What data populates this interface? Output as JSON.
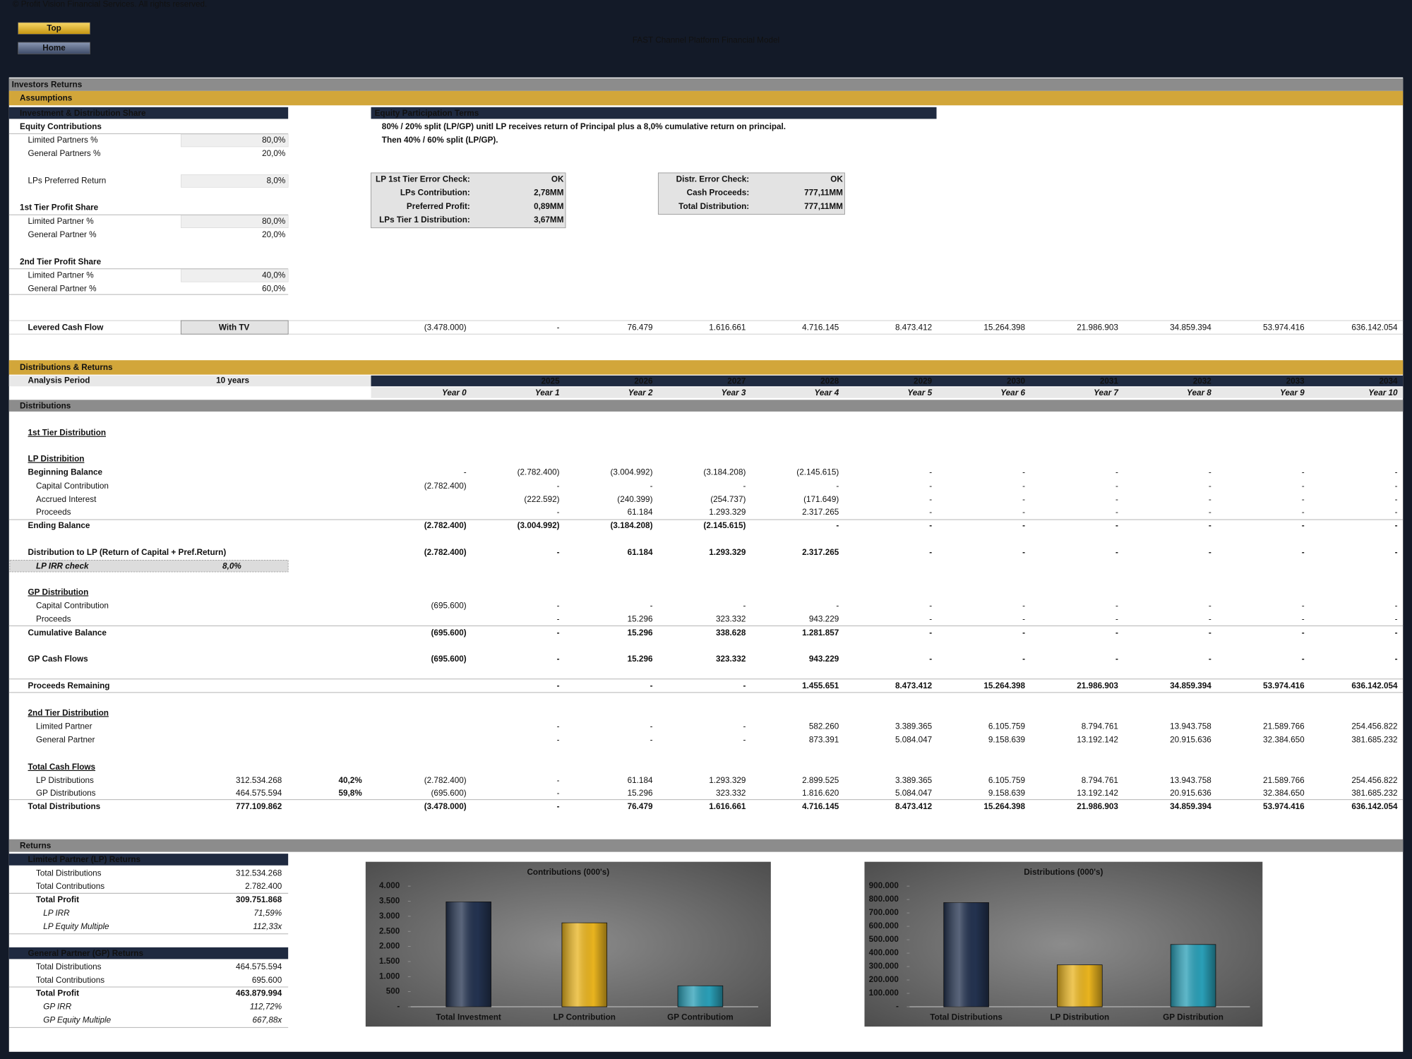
{
  "header": {
    "copyright": "© Profit Vision Financial Services. All rights reserved.",
    "buttons": [
      "Top",
      "Home"
    ],
    "title": "FAST Channel Platform Financial Model"
  },
  "page_title": "Investors Returns",
  "assumptions": {
    "title": "Assumptions",
    "share_header": "Investment & Distribution Share",
    "share_rows": [
      {
        "label": "Equity Contributions"
      },
      {
        "label": "Limited Partners %",
        "value": "80,0%"
      },
      {
        "label": "General Partners %",
        "value": "20,0%"
      },
      {
        "label": "LPs Preferred Return",
        "value": "8,0%"
      },
      {
        "label": "1st Tier Profit Share"
      },
      {
        "label": "Limited Partner %",
        "value": "80,0%"
      },
      {
        "label": "General Partner %",
        "value": "20,0%"
      },
      {
        "label": "2nd Tier Profit Share"
      },
      {
        "label": "Limited Partner %",
        "value": "40,0%"
      },
      {
        "label": "General Partner %",
        "value": "60,0%"
      }
    ],
    "terms_header": "Equity Participation Terms",
    "terms": [
      "80% / 20% split (LP/GP) unitl LP receives return of Principal plus a 8,0% cumulative return on principal.",
      "Then 40% / 60% split (LP/GP)."
    ],
    "check_1": [
      {
        "label": "LP 1st Tier Error Check:",
        "value": "OK"
      },
      {
        "label": "LPs Contribution:",
        "value": "2,78MM"
      },
      {
        "label": "Preferred Profit:",
        "value": "0,89MM"
      },
      {
        "label": "LPs Tier 1 Distribution:",
        "value": "3,67MM"
      }
    ],
    "check_2": [
      {
        "label": "Distr. Error Check:",
        "value": "OK"
      },
      {
        "label": "Cash Proceeds:",
        "value": "777,11MM"
      },
      {
        "label": "Total Distribution:",
        "value": "777,11MM"
      }
    ],
    "levered": {
      "label": "Levered Cash Flow",
      "case": "With TV",
      "values": [
        "(3.478.000)",
        "-",
        "76.479",
        "1.616.661",
        "4.716.145",
        "8.473.412",
        "15.264.398",
        "21.986.903",
        "34.859.394",
        "53.974.416",
        "636.142.054"
      ]
    }
  },
  "distributions": {
    "title": "Distributions & Returns",
    "analysis_period": {
      "label": "Analysis Period",
      "value": "10 years"
    },
    "years": [
      "2025",
      "2026",
      "2027",
      "2028",
      "2029",
      "2030",
      "2031",
      "2032",
      "2033",
      "2034"
    ],
    "periods": [
      "Year 0",
      "Year 1",
      "Year 2",
      "Year 3",
      "Year 4",
      "Year 5",
      "Year 6",
      "Year 7",
      "Year 8",
      "Year 9",
      "Year 10"
    ],
    "subtitle": "Distributions",
    "rows": [
      {
        "label": "1st Tier Distribution"
      },
      {
        "label": "LP Distribition"
      },
      {
        "label": "Beginning Balance",
        "values": [
          "-",
          "(2.782.400)",
          "(3.004.992)",
          "(3.184.208)",
          "(2.145.615)",
          "-",
          "-",
          "-",
          "-",
          "-",
          "-"
        ]
      },
      {
        "label": "Capital Contribution",
        "values": [
          "(2.782.400)",
          "-",
          "-",
          "-",
          "-",
          "-",
          "-",
          "-",
          "-",
          "-",
          "-"
        ]
      },
      {
        "label": "Accrued Interest",
        "values": [
          null,
          "(222.592)",
          "(240.399)",
          "(254.737)",
          "(171.649)",
          "-",
          "-",
          "-",
          "-",
          "-",
          "-"
        ]
      },
      {
        "label": "Proceeds",
        "values": [
          null,
          "-",
          "61.184",
          "1.293.329",
          "2.317.265",
          "-",
          "-",
          "-",
          "-",
          "-",
          "-"
        ]
      },
      {
        "label": "Ending Balance",
        "values": [
          "(2.782.400)",
          "(3.004.992)",
          "(3.184.208)",
          "(2.145.615)",
          "-",
          "-",
          "-",
          "-",
          "-",
          "-",
          "-"
        ]
      },
      {
        "label": "Distribution to LP (Return of Capital + Pref.Return)",
        "values": [
          "(2.782.400)",
          "-",
          "61.184",
          "1.293.329",
          "2.317.265",
          "-",
          "-",
          "-",
          "-",
          "-",
          "-"
        ]
      },
      {
        "label": "GP Distribution"
      },
      {
        "label": "Capital Contribution",
        "values": [
          "(695.600)",
          "-",
          "-",
          "-",
          "-",
          "-",
          "-",
          "-",
          "-",
          "-",
          "-"
        ]
      },
      {
        "label": "Proceeds",
        "values": [
          null,
          "-",
          "15.296",
          "323.332",
          "943.229",
          "-",
          "-",
          "-",
          "-",
          "-",
          "-"
        ]
      },
      {
        "label": "Cumulative Balance",
        "values": [
          "(695.600)",
          "-",
          "15.296",
          "338.628",
          "1.281.857",
          "-",
          "-",
          "-",
          "-",
          "-",
          "-"
        ]
      },
      {
        "label": "GP Cash Flows",
        "values": [
          "(695.600)",
          "-",
          "15.296",
          "323.332",
          "943.229",
          "-",
          "-",
          "-",
          "-",
          "-",
          "-"
        ]
      },
      {
        "label": "Proceeds Remaining",
        "values": [
          null,
          "-",
          "-",
          "-",
          "1.455.651",
          "8.473.412",
          "15.264.398",
          "21.986.903",
          "34.859.394",
          "53.974.416",
          "636.142.054"
        ]
      },
      {
        "label": "2nd Tier Distribution"
      },
      {
        "label": "Limited Partner",
        "values": [
          null,
          "-",
          "-",
          "-",
          "582.260",
          "3.389.365",
          "6.105.759",
          "8.794.761",
          "13.943.758",
          "21.589.766",
          "254.456.822"
        ]
      },
      {
        "label": "General Partner",
        "values": [
          null,
          "-",
          "-",
          "-",
          "873.391",
          "5.084.047",
          "9.158.639",
          "13.192.142",
          "20.915.636",
          "32.384.650",
          "381.685.232"
        ]
      },
      {
        "label": "Total Cash Flows"
      },
      {
        "label": "LP Distributions",
        "total": "312.534.268",
        "share": "40,2%",
        "values": [
          "(2.782.400)",
          "-",
          "61.184",
          "1.293.329",
          "2.899.525",
          "3.389.365",
          "6.105.759",
          "8.794.761",
          "13.943.758",
          "21.589.766",
          "254.456.822"
        ]
      },
      {
        "label": "GP Distributions",
        "total": "464.575.594",
        "share": "59,8%",
        "values": [
          "(695.600)",
          "-",
          "15.296",
          "323.332",
          "1.816.620",
          "5.084.047",
          "9.158.639",
          "13.192.142",
          "20.915.636",
          "32.384.650",
          "381.685.232"
        ]
      },
      {
        "label": "Total Distributions",
        "total": "777.109.862",
        "values": [
          "(3.478.000)",
          "-",
          "76.479",
          "1.616.661",
          "4.716.145",
          "8.473.412",
          "15.264.398",
          "21.986.903",
          "34.859.394",
          "53.974.416",
          "636.142.054"
        ]
      }
    ],
    "irr_check": {
      "label": "LP IRR check",
      "value": "8,0%"
    }
  },
  "returns": {
    "title": "Returns",
    "lp": {
      "header": "Limited Partner (LP) Returns",
      "rows": [
        {
          "label": "Total Distributions",
          "value": "312.534.268"
        },
        {
          "label": "Total Contributions",
          "value": "2.782.400"
        },
        {
          "label": "Total Profit",
          "value": "309.751.868"
        },
        {
          "label": "LP IRR",
          "value": "71,59%"
        },
        {
          "label": "LP Equity Multiple",
          "value": "112,33x"
        }
      ]
    },
    "gp": {
      "header": "General Partner (GP) Returns",
      "rows": [
        {
          "label": "Total Distributions",
          "value": "464.575.594"
        },
        {
          "label": "Total Contributions",
          "value": "695.600"
        },
        {
          "label": "Total Profit",
          "value": "463.879.994"
        },
        {
          "label": "GP IRR",
          "value": "112,72%"
        },
        {
          "label": "GP Equity Multiple",
          "value": "667,88x"
        }
      ]
    }
  },
  "chart_data": [
    {
      "type": "bar",
      "title": "Contributions (000's)",
      "categories": [
        "Total Investment",
        "LP Contribution",
        "GP Contributiom"
      ],
      "values": [
        3478,
        2782.4,
        695.6
      ],
      "colors": [
        "#23324f",
        "#e9b41f",
        "#2a9fb7"
      ],
      "ylim": [
        0,
        4000
      ],
      "yticks": [
        {
          "value": 0,
          "label": "-"
        },
        500,
        {
          "value": 1000,
          "label": "1.000"
        },
        {
          "value": 1500,
          "label": "1.500"
        },
        {
          "value": 2000,
          "label": "2.000"
        },
        {
          "value": 2500,
          "label": "2.500"
        },
        {
          "value": 3000,
          "label": "3.000"
        },
        {
          "value": 3500,
          "label": "3.500"
        },
        {
          "value": 4000,
          "label": "4.000"
        }
      ]
    },
    {
      "type": "bar",
      "title": "Distributions (000's)",
      "categories": [
        "Total Distributions",
        "LP Distribution",
        "GP Distribution"
      ],
      "values": [
        777109.862,
        312534.268,
        464575.594
      ],
      "colors": [
        "#23324f",
        "#e9b41f",
        "#2a9fb7"
      ],
      "ylim": [
        0,
        900000
      ],
      "yticks": [
        {
          "value": 0,
          "label": "-"
        },
        {
          "value": 100000,
          "label": "100.000"
        },
        {
          "value": 200000,
          "label": "200.000"
        },
        {
          "value": 300000,
          "label": "300.000"
        },
        {
          "value": 400000,
          "label": "400.000"
        },
        {
          "value": 500000,
          "label": "500.000"
        },
        {
          "value": 600000,
          "label": "600.000"
        },
        {
          "value": 700000,
          "label": "700.000"
        },
        {
          "value": 800000,
          "label": "800.000"
        },
        {
          "value": 900000,
          "label": "900.000"
        }
      ]
    }
  ]
}
